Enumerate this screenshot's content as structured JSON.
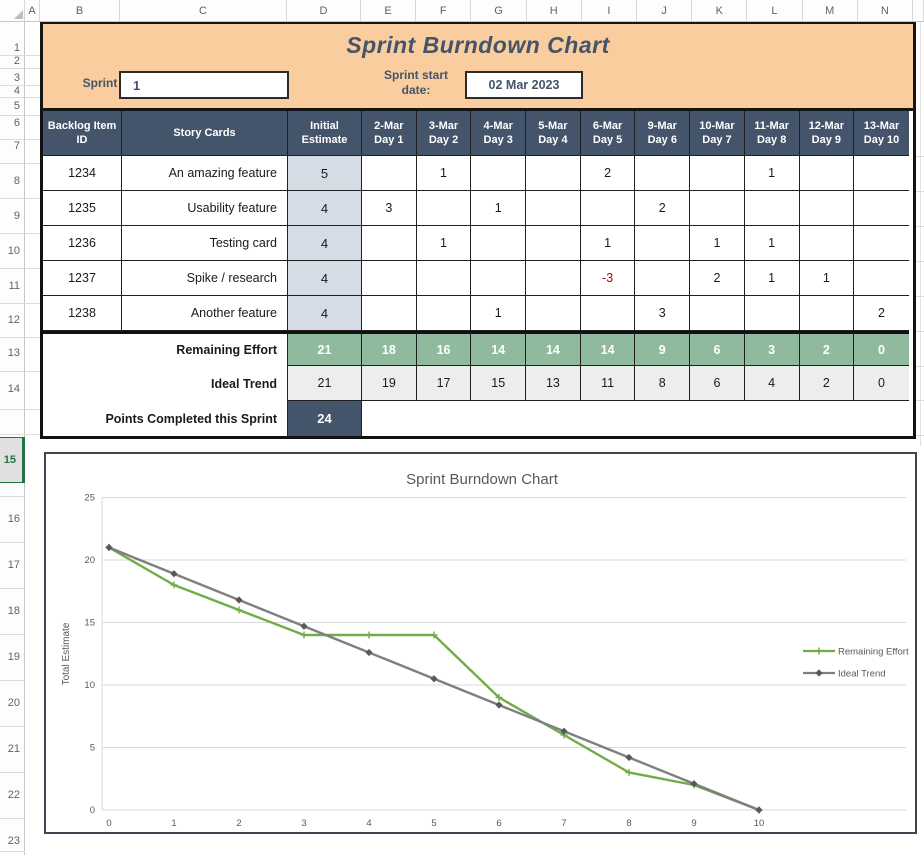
{
  "excel": {
    "column_headers": [
      "A",
      "B",
      "C",
      "D",
      "E",
      "F",
      "G",
      "H",
      "I",
      "J",
      "K",
      "L",
      "M",
      "N"
    ],
    "row_numbers_top": [
      "1",
      "2",
      "3",
      "4",
      "5",
      "6",
      "7",
      "8",
      "9",
      "10",
      "11",
      "12",
      "13",
      "14"
    ],
    "selected_row": "15",
    "row_numbers_bottom": [
      "16",
      "17",
      "18",
      "19",
      "20",
      "21",
      "22",
      "23"
    ]
  },
  "banner": {
    "title": "Sprint Burndown Chart",
    "sprint_label": "Sprint #",
    "sprint_value": "1",
    "date_label": "Sprint start date:",
    "date_value": "02 Mar 2023"
  },
  "table": {
    "header_backlog": "Backlog Item ID",
    "header_story": "Story Cards",
    "header_initial": "Initial Estimate",
    "day_columns": [
      {
        "date": "2-Mar",
        "day": "Day 1"
      },
      {
        "date": "3-Mar",
        "day": "Day 2"
      },
      {
        "date": "4-Mar",
        "day": "Day 3"
      },
      {
        "date": "5-Mar",
        "day": "Day 4"
      },
      {
        "date": "6-Mar",
        "day": "Day 5"
      },
      {
        "date": "9-Mar",
        "day": "Day 6"
      },
      {
        "date": "10-Mar",
        "day": "Day 7"
      },
      {
        "date": "11-Mar",
        "day": "Day 8"
      },
      {
        "date": "12-Mar",
        "day": "Day 9"
      },
      {
        "date": "13-Mar",
        "day": "Day 10"
      }
    ],
    "rows": [
      {
        "id": "1234",
        "story": "An amazing feature",
        "estimate": "5",
        "days": [
          "",
          "1",
          "",
          "",
          "2",
          "",
          "",
          "1",
          "",
          ""
        ]
      },
      {
        "id": "1235",
        "story": "Usability feature",
        "estimate": "4",
        "days": [
          "3",
          "",
          "1",
          "",
          "",
          "2",
          "",
          "",
          "",
          ""
        ]
      },
      {
        "id": "1236",
        "story": "Testing card",
        "estimate": "4",
        "days": [
          "",
          "1",
          "",
          "",
          "1",
          "",
          "1",
          "1",
          "",
          ""
        ]
      },
      {
        "id": "1237",
        "story": "Spike / research",
        "estimate": "4",
        "days": [
          "",
          "",
          "",
          "",
          "-3",
          "",
          "2",
          "1",
          "1",
          ""
        ]
      },
      {
        "id": "1238",
        "story": "Another feature",
        "estimate": "4",
        "days": [
          "",
          "",
          "1",
          "",
          "",
          "3",
          "",
          "",
          "",
          "2"
        ]
      }
    ],
    "remaining_label": "Remaining Effort",
    "remaining_values": [
      "21",
      "18",
      "16",
      "14",
      "14",
      "14",
      "9",
      "6",
      "3",
      "2",
      "0"
    ],
    "ideal_label": "Ideal Trend",
    "ideal_values": [
      "21",
      "19",
      "17",
      "15",
      "13",
      "11",
      "8",
      "6",
      "4",
      "2",
      "0"
    ],
    "points_label": "Points Completed this Sprint",
    "points_value": "24"
  },
  "chart_data": {
    "type": "line",
    "title": "Sprint Burndown Chart",
    "xlabel": "",
    "ylabel": "Total Estimate",
    "x": [
      0,
      1,
      2,
      3,
      4,
      5,
      6,
      7,
      8,
      9,
      10
    ],
    "xtick_labels": [
      "0",
      "1",
      "2",
      "3",
      "4",
      "5",
      "6",
      "7",
      "8",
      "9",
      "10"
    ],
    "ylim": [
      0,
      25
    ],
    "ytick_step": 5,
    "grid": true,
    "legend_position": "right",
    "series": [
      {
        "name": "Remaining Effort",
        "color": "#70AD47",
        "marker": "plus",
        "values": [
          21,
          18,
          16,
          14,
          14,
          14,
          9,
          6,
          3,
          2,
          0
        ]
      },
      {
        "name": "Ideal Trend",
        "color": "#7F7F7F",
        "marker": "diamond",
        "marker_color": "#595959",
        "values": [
          21,
          18.9,
          16.8,
          14.7,
          12.6,
          10.5,
          8.4,
          6.3,
          4.2,
          2.1,
          0
        ]
      }
    ]
  },
  "colors": {
    "accent_dark": "#44546A",
    "banner_bg": "#FACD9E",
    "estimate_bg": "#D6DCE5",
    "remaining_bg": "#8FBA9E",
    "ideal_bg": "#EDEDED",
    "negative_red": "#C00000",
    "selected_green": "#217346",
    "chart_text": "#595959",
    "chart_grid": "#D9D9D9"
  }
}
